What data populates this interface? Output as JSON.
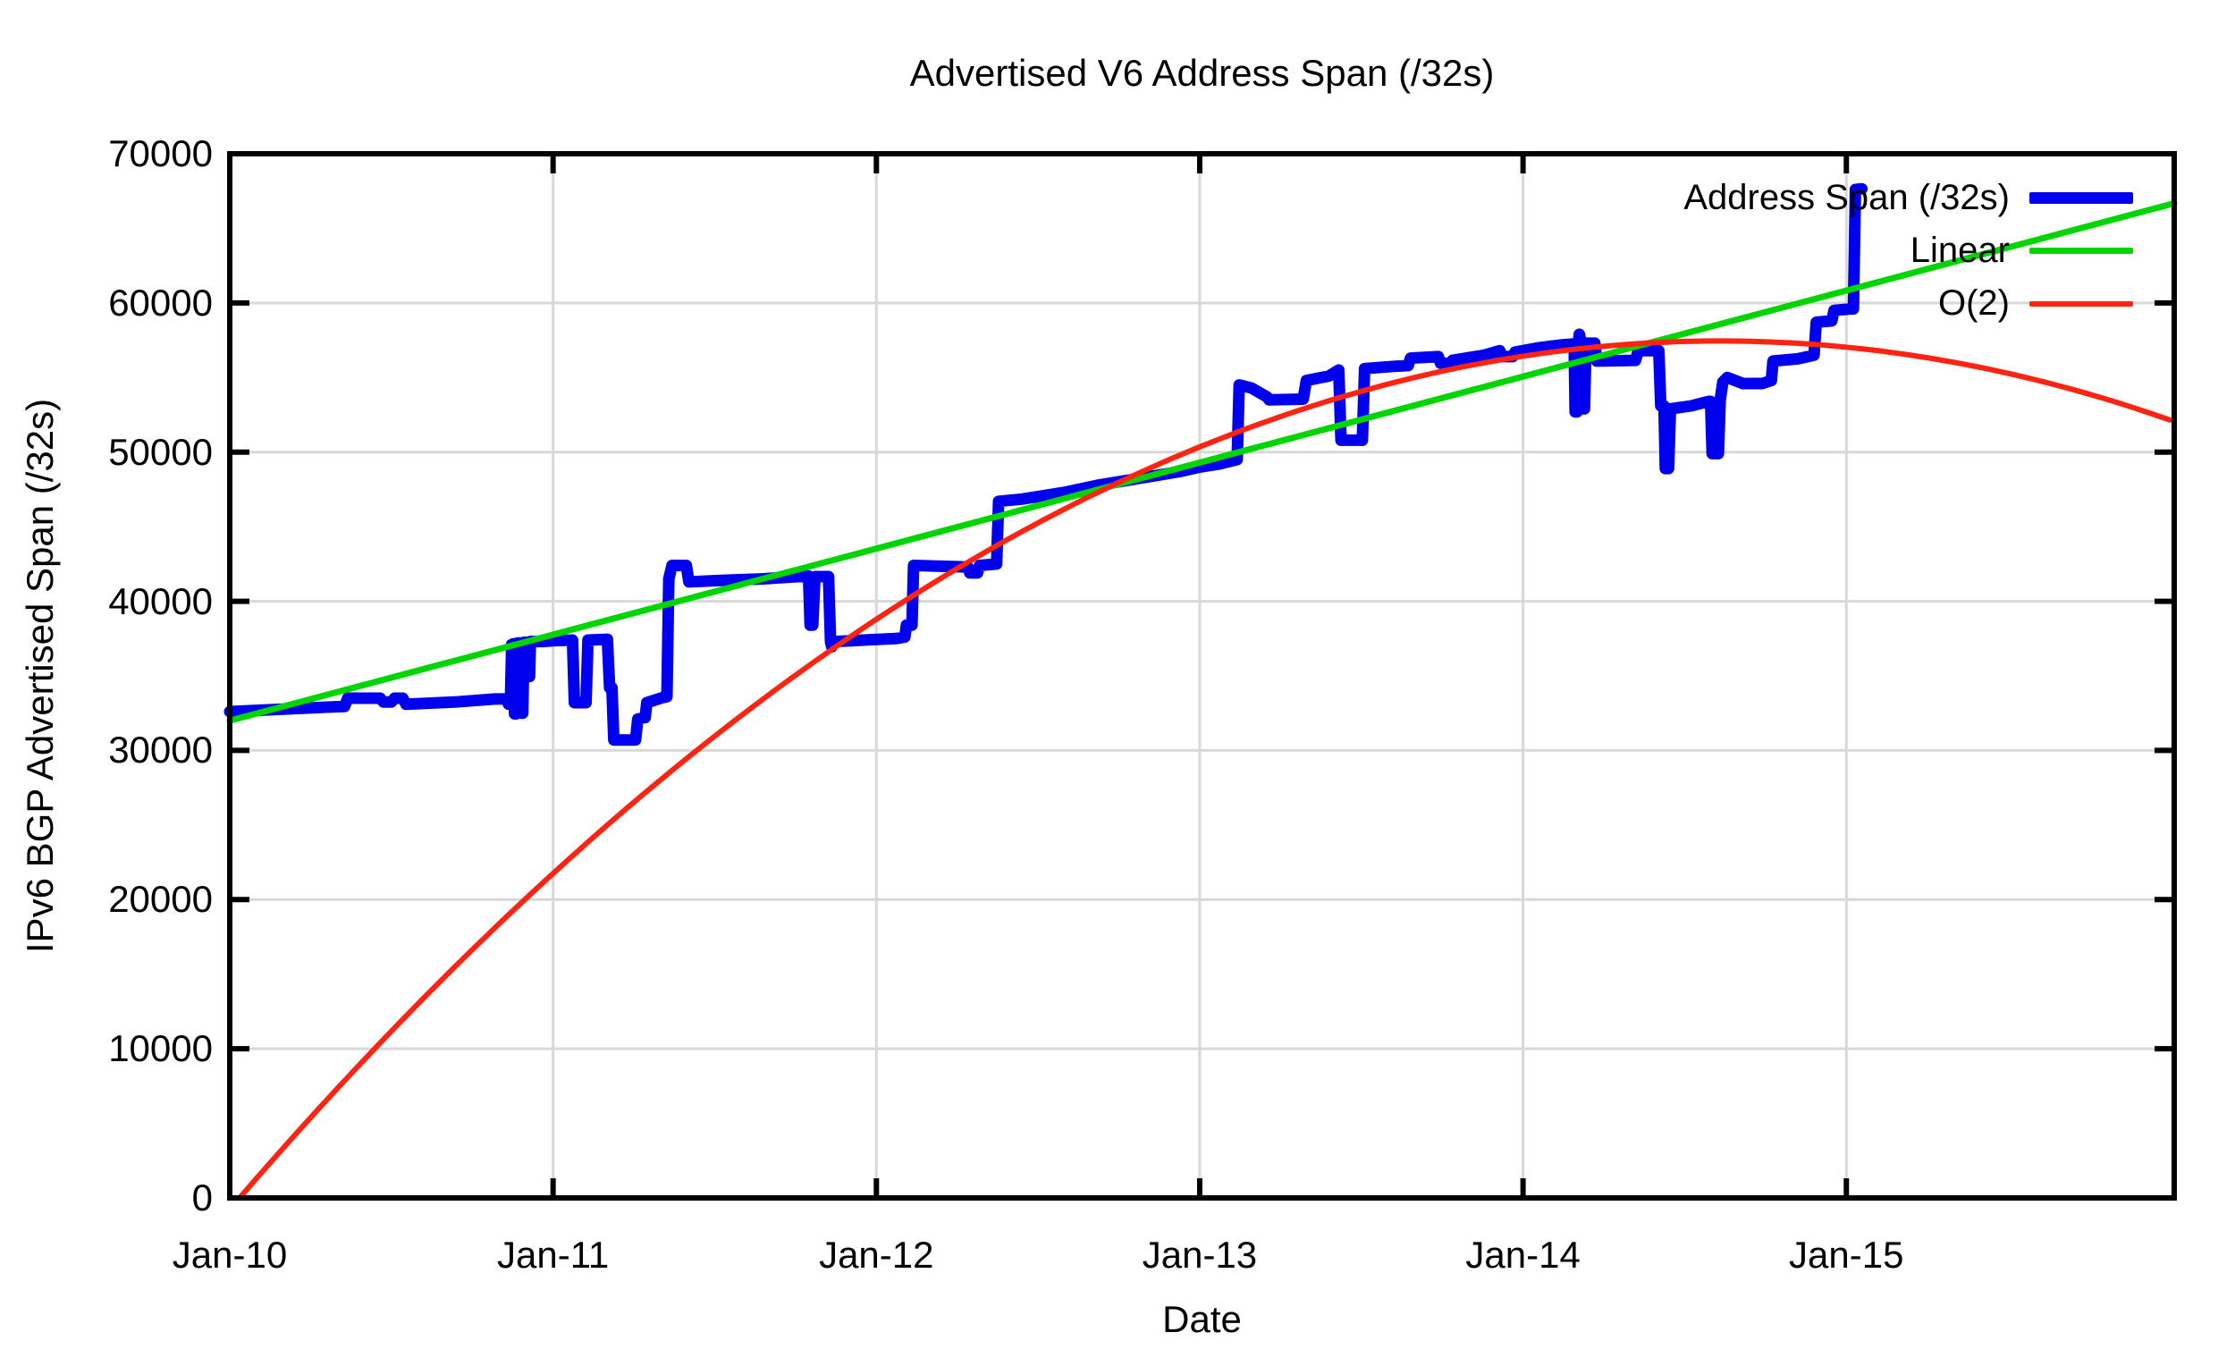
{
  "title": "Advertised V6 Address Span (/32s)",
  "axes": {
    "x_label": "Date",
    "y_label": "IPv6 BGP Advertised Span (/32s)",
    "x_tick_labels": [
      "Jan-10",
      "Jan-11",
      "Jan-12",
      "Jan-13",
      "Jan-14",
      "Jan-15"
    ],
    "x_tick_positions_years": [
      0,
      1,
      2,
      3,
      4,
      5
    ],
    "y_tick_labels": [
      "0",
      "10000",
      "20000",
      "30000",
      "40000",
      "50000",
      "60000",
      "70000"
    ],
    "y_tick_values": [
      0,
      10000,
      20000,
      30000,
      40000,
      50000,
      60000,
      70000
    ]
  },
  "legend": [
    {
      "label": "Address Span (/32s)",
      "color": "#0000ee",
      "swatch_height": 13
    },
    {
      "label": "Linear",
      "color": "#00d500",
      "swatch_height": 7
    },
    {
      "label": "O(2)",
      "color": "#ff2412",
      "swatch_height": 6
    }
  ],
  "colors": {
    "grid": "#d8d8d8",
    "border": "#000000",
    "background": "#ffffff"
  },
  "chart_data": {
    "type": "line",
    "title": "Advertised V6 Address Span (/32s)",
    "xlabel": "Date",
    "ylabel": "IPv6 BGP Advertised Span (/32s)",
    "x_unit": "years_since_Jan_2010",
    "xlim": [
      0,
      6.014
    ],
    "ylim": [
      0,
      70000
    ],
    "grid": true,
    "legend_position": "top-right-inside",
    "series": [
      {
        "name": "Address Span (/32s)",
        "color": "#0000ee",
        "width": 13,
        "style": "noisy-step-data",
        "points": [
          [
            0.0,
            32600
          ],
          [
            0.15,
            32750
          ],
          [
            0.3,
            32900
          ],
          [
            0.355,
            32950
          ],
          [
            0.365,
            33500
          ],
          [
            0.465,
            33500
          ],
          [
            0.475,
            33250
          ],
          [
            0.5,
            33250
          ],
          [
            0.51,
            33500
          ],
          [
            0.535,
            33500
          ],
          [
            0.545,
            33100
          ],
          [
            0.7,
            33250
          ],
          [
            0.82,
            33450
          ],
          [
            0.858,
            33450
          ],
          [
            0.862,
            33100
          ],
          [
            0.868,
            33100
          ],
          [
            0.872,
            37100
          ],
          [
            0.878,
            37150
          ],
          [
            0.881,
            32450
          ],
          [
            0.886,
            32450
          ],
          [
            0.89,
            37200
          ],
          [
            0.898,
            37200
          ],
          [
            0.901,
            32500
          ],
          [
            0.906,
            32500
          ],
          [
            0.91,
            37250
          ],
          [
            0.92,
            37250
          ],
          [
            0.923,
            34950
          ],
          [
            0.927,
            34950
          ],
          [
            0.93,
            37300
          ],
          [
            0.965,
            37300
          ],
          [
            1.0,
            37350
          ],
          [
            1.06,
            37400
          ],
          [
            1.066,
            33200
          ],
          [
            1.102,
            33200
          ],
          [
            1.108,
            37400
          ],
          [
            1.168,
            37450
          ],
          [
            1.175,
            34200
          ],
          [
            1.182,
            34200
          ],
          [
            1.188,
            30700
          ],
          [
            1.255,
            30700
          ],
          [
            1.262,
            32100
          ],
          [
            1.28,
            32200
          ],
          [
            1.285,
            32200
          ],
          [
            1.29,
            33200
          ],
          [
            1.34,
            33550
          ],
          [
            1.352,
            33600
          ],
          [
            1.358,
            41500
          ],
          [
            1.368,
            42400
          ],
          [
            1.412,
            42400
          ],
          [
            1.42,
            41300
          ],
          [
            1.52,
            41400
          ],
          [
            1.65,
            41500
          ],
          [
            1.79,
            41700
          ],
          [
            1.795,
            38400
          ],
          [
            1.803,
            38400
          ],
          [
            1.81,
            41650
          ],
          [
            1.852,
            41650
          ],
          [
            1.858,
            37300
          ],
          [
            1.862,
            36950
          ],
          [
            1.872,
            37300
          ],
          [
            1.96,
            37400
          ],
          [
            2.06,
            37500
          ],
          [
            2.088,
            37600
          ],
          [
            2.093,
            38400
          ],
          [
            2.11,
            38400
          ],
          [
            2.115,
            42400
          ],
          [
            2.2,
            42350
          ],
          [
            2.283,
            42300
          ],
          [
            2.289,
            41900
          ],
          [
            2.313,
            41900
          ],
          [
            2.319,
            42400
          ],
          [
            2.372,
            42500
          ],
          [
            2.378,
            46700
          ],
          [
            2.45,
            46850
          ],
          [
            2.58,
            47300
          ],
          [
            2.69,
            47800
          ],
          [
            2.83,
            48300
          ],
          [
            2.94,
            48700
          ],
          [
            3.0,
            49000
          ],
          [
            3.06,
            49200
          ],
          [
            3.116,
            49500
          ],
          [
            3.122,
            54500
          ],
          [
            3.16,
            54300
          ],
          [
            3.208,
            53700
          ],
          [
            3.215,
            53500
          ],
          [
            3.32,
            53550
          ],
          [
            3.33,
            54800
          ],
          [
            3.4,
            55100
          ],
          [
            3.43,
            55500
          ],
          [
            3.437,
            50800
          ],
          [
            3.503,
            50800
          ],
          [
            3.51,
            55600
          ],
          [
            3.6,
            55750
          ],
          [
            3.645,
            55800
          ],
          [
            3.652,
            56300
          ],
          [
            3.738,
            56400
          ],
          [
            3.745,
            55950
          ],
          [
            3.775,
            55950
          ],
          [
            3.782,
            56150
          ],
          [
            3.88,
            56500
          ],
          [
            3.928,
            56800
          ],
          [
            3.934,
            56400
          ],
          [
            3.968,
            56400
          ],
          [
            3.975,
            56700
          ],
          [
            4.05,
            57000
          ],
          [
            4.125,
            57200
          ],
          [
            4.158,
            57250
          ],
          [
            4.161,
            52700
          ],
          [
            4.167,
            52700
          ],
          [
            4.171,
            57400
          ],
          [
            4.174,
            57900
          ],
          [
            4.179,
            57400
          ],
          [
            4.184,
            52900
          ],
          [
            4.19,
            52900
          ],
          [
            4.195,
            57300
          ],
          [
            4.222,
            57300
          ],
          [
            4.228,
            56100
          ],
          [
            4.348,
            56150
          ],
          [
            4.356,
            56800
          ],
          [
            4.42,
            56800
          ],
          [
            4.426,
            53100
          ],
          [
            4.436,
            53100
          ],
          [
            4.44,
            48900
          ],
          [
            4.45,
            48900
          ],
          [
            4.456,
            52900
          ],
          [
            4.52,
            53100
          ],
          [
            4.574,
            53400
          ],
          [
            4.58,
            53400
          ],
          [
            4.585,
            49900
          ],
          [
            4.604,
            49900
          ],
          [
            4.61,
            53500
          ],
          [
            4.618,
            54700
          ],
          [
            4.632,
            55000
          ],
          [
            4.68,
            54600
          ],
          [
            4.74,
            54600
          ],
          [
            4.768,
            54800
          ],
          [
            4.773,
            56100
          ],
          [
            4.85,
            56250
          ],
          [
            4.9,
            56500
          ],
          [
            4.907,
            58700
          ],
          [
            4.955,
            58800
          ],
          [
            4.962,
            59500
          ],
          [
            5.015,
            59600
          ],
          [
            5.022,
            59600
          ],
          [
            5.028,
            67600
          ],
          [
            5.048,
            67650
          ]
        ]
      },
      {
        "name": "Linear",
        "color": "#00d500",
        "width": 7,
        "style": "linear-fit",
        "points": [
          [
            0,
            32000
          ],
          [
            6.014,
            66680
          ]
        ]
      },
      {
        "name": "O(2)",
        "color": "#ff2412",
        "width": 6,
        "style": "quadratic-fit",
        "quadratic": {
          "peak_t": 4.61,
          "peak_value": 57450,
          "curvature": 2739,
          "t_start": 0.031,
          "t_end": 6.014
        },
        "endpoints_note": [
          [
            0.031,
            0
          ],
          [
            4.61,
            57450
          ],
          [
            6.014,
            52050
          ]
        ]
      }
    ]
  }
}
